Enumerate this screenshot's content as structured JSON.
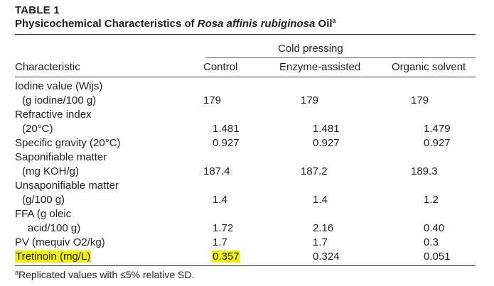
{
  "table": {
    "label": "TABLE 1",
    "title_prefix": "Physicochemical Characteristics of ",
    "title_italic": "Rosa affinis rubiginosa",
    "title_suffix": " Oil",
    "title_superscript": "a",
    "group_header": "Cold pressing",
    "columns": [
      "Characteristic",
      "Control",
      "Enzyme-assisted",
      "Organic solvent"
    ],
    "rows": [
      {
        "label_lines": [
          "Iodine value (Wijs)",
          "(g iodine/100 g)"
        ],
        "values": [
          "179",
          "179",
          "179"
        ]
      },
      {
        "label_lines": [
          "Refractive index",
          "(20°C)"
        ],
        "values": [
          "1.481",
          "1.481",
          "1.479"
        ]
      },
      {
        "label_lines": [
          "Specific gravity (20°C)"
        ],
        "values": [
          "0.927",
          "0.927",
          "0.927"
        ]
      },
      {
        "label_lines": [
          "Saponifiable matter",
          "(mg KOH/g)"
        ],
        "values": [
          "187.4",
          "187.2",
          "189.3"
        ]
      },
      {
        "label_lines": [
          "Unsaponifiable matter",
          "(g/100 g)"
        ],
        "values": [
          "1.4",
          "1.4",
          "1.2"
        ]
      },
      {
        "label_lines": [
          "FFA (g oleic",
          "acid/100 g)"
        ],
        "values": [
          "1.72",
          "2.16",
          "0.40"
        ]
      },
      {
        "label_lines": [
          "PV (mequiv O2/kg)"
        ],
        "values": [
          "1.7",
          "1.7",
          "0.3"
        ]
      },
      {
        "label_lines": [
          "Tretinoin (mg/L)"
        ],
        "values": [
          "0.357",
          "0.324",
          "0.051"
        ]
      }
    ],
    "footnote_superscript": "a",
    "footnote_text": "Replicated values with ≤5% relative SD.",
    "highlight_color": "#f4f000"
  }
}
